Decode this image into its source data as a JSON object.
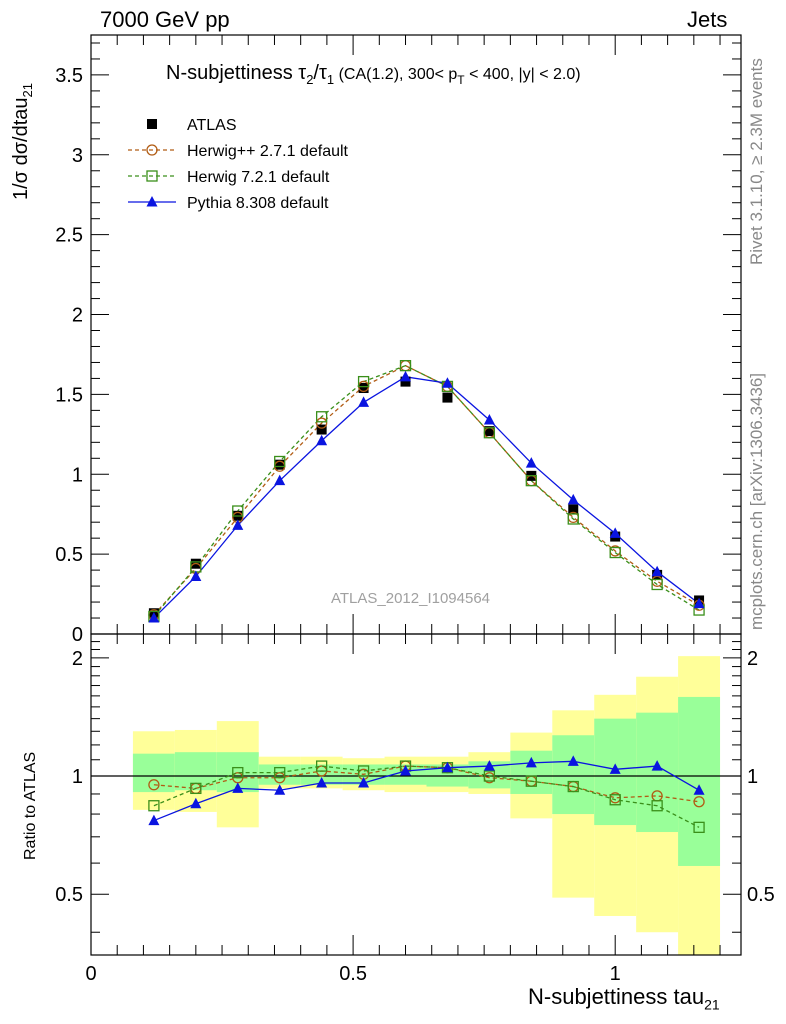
{
  "header": {
    "left": "7000 GeV pp",
    "right": "Jets"
  },
  "side_text": {
    "top": "Rivet 3.1.10, ≥ 2.3M events",
    "bottom": "mcplots.cern.ch [arXiv:1306.3436]"
  },
  "watermark": "ATLAS_2012_I1094564",
  "colors": {
    "atlas": "#000000",
    "herwigpp": "#b15c14",
    "herwig7": "#3a8f1a",
    "pythia": "#0a14e0",
    "band_outer": "#ffff99",
    "band_inner": "#99ff99"
  },
  "chart_data": [
    {
      "type": "line",
      "title": "N-subjettiness τ2/τ1 (CA(1.2), 300< pT < 400, |y| < 2.0)",
      "title_parts": {
        "main": "N-subjettiness ",
        "tau": "τ",
        "sub2": "2",
        "slash": "/",
        "sub1": "1",
        "rest": " (CA(1.2), 300< p",
        "subT": "T",
        "rest2": " < 400, |y| < 2.0)"
      },
      "ylabel": "1/σ dσ/dtau21",
      "ylabel_parts": {
        "main": "1/σ dσ/dtau",
        "sub": "21"
      },
      "ylim": [
        0,
        3.75
      ],
      "yticks": [
        0,
        0.5,
        1,
        1.5,
        2,
        2.5,
        3,
        3.5
      ],
      "ytick_labels": [
        "0",
        "0.5",
        "1",
        "1.5",
        "2",
        "2.5",
        "3",
        "3.5"
      ],
      "xlim": [
        0,
        1.24
      ],
      "legend_position": "top-left",
      "x": [
        0.12,
        0.2,
        0.28,
        0.36,
        0.44,
        0.52,
        0.6,
        0.68,
        0.76,
        0.84,
        0.92,
        1.0,
        1.08,
        1.16
      ],
      "series": [
        {
          "name": "ATLAS",
          "marker": "filled-square",
          "values": [
            0.13,
            0.44,
            0.74,
            1.06,
            1.28,
            1.54,
            1.58,
            1.48,
            1.27,
            0.99,
            0.78,
            0.61,
            0.37,
            0.21
          ]
        },
        {
          "name": "Herwig++ 2.7.1 default",
          "marker": "open-circle",
          "values": [
            0.12,
            0.41,
            0.73,
            1.05,
            1.32,
            1.55,
            1.68,
            1.55,
            1.26,
            0.96,
            0.73,
            0.52,
            0.33,
            0.18
          ]
        },
        {
          "name": "Herwig 7.2.1 default",
          "marker": "open-square",
          "values": [
            0.11,
            0.42,
            0.77,
            1.08,
            1.36,
            1.58,
            1.68,
            1.55,
            1.26,
            0.96,
            0.72,
            0.51,
            0.31,
            0.15
          ]
        },
        {
          "name": "Pythia 8.308 default",
          "marker": "filled-triangle",
          "values": [
            0.1,
            0.36,
            0.68,
            0.96,
            1.21,
            1.45,
            1.61,
            1.57,
            1.34,
            1.07,
            0.84,
            0.63,
            0.39,
            0.19
          ]
        }
      ]
    },
    {
      "type": "line",
      "ylabel": "Ratio to ATLAS",
      "xlabel": "N-subjettiness tau21",
      "xlabel_parts": {
        "main": "N-subjettiness tau",
        "sub": "21"
      },
      "ylim": [
        0.35,
        2.3
      ],
      "yticks": [
        0.5,
        1,
        2
      ],
      "ytick_labels": [
        "0.5",
        "1",
        "2"
      ],
      "xlim": [
        0,
        1.24
      ],
      "xticks": [
        0,
        0.5,
        1
      ],
      "xtick_labels": [
        "0",
        "0.5",
        "1"
      ],
      "bands": {
        "bin_edges": [
          0.08,
          0.16,
          0.24,
          0.32,
          0.4,
          0.48,
          0.56,
          0.64,
          0.72,
          0.8,
          0.88,
          0.96,
          1.04,
          1.12,
          1.2
        ],
        "outer_low": [
          0.82,
          0.81,
          0.74,
          0.93,
          0.93,
          0.92,
          0.91,
          0.91,
          0.9,
          0.78,
          0.49,
          0.44,
          0.4,
          0.33
        ],
        "outer_high": [
          1.3,
          1.31,
          1.38,
          1.12,
          1.12,
          1.11,
          1.12,
          1.12,
          1.15,
          1.29,
          1.47,
          1.61,
          1.79,
          2.02
        ],
        "inner_low": [
          0.91,
          0.92,
          0.91,
          0.95,
          0.95,
          0.95,
          0.95,
          0.94,
          0.93,
          0.9,
          0.8,
          0.75,
          0.72,
          0.59
        ],
        "inner_high": [
          1.14,
          1.15,
          1.15,
          1.07,
          1.07,
          1.07,
          1.07,
          1.07,
          1.09,
          1.16,
          1.27,
          1.4,
          1.45,
          1.59
        ]
      },
      "series": [
        {
          "name": "Herwig++ 2.7.1 default",
          "values": [
            0.95,
            0.93,
            0.99,
            0.99,
            1.03,
            1.01,
            1.06,
            1.05,
            0.99,
            0.97,
            0.94,
            0.88,
            0.89,
            0.86
          ]
        },
        {
          "name": "Herwig 7.2.1 default",
          "values": [
            0.84,
            0.93,
            1.02,
            1.02,
            1.06,
            1.03,
            1.06,
            1.05,
            1.0,
            0.97,
            0.94,
            0.87,
            0.84,
            0.74
          ]
        },
        {
          "name": "Pythia 8.308 default",
          "values": [
            0.77,
            0.85,
            0.93,
            0.92,
            0.96,
            0.96,
            1.03,
            1.05,
            1.06,
            1.08,
            1.09,
            1.04,
            1.06,
            0.92
          ]
        }
      ]
    }
  ]
}
